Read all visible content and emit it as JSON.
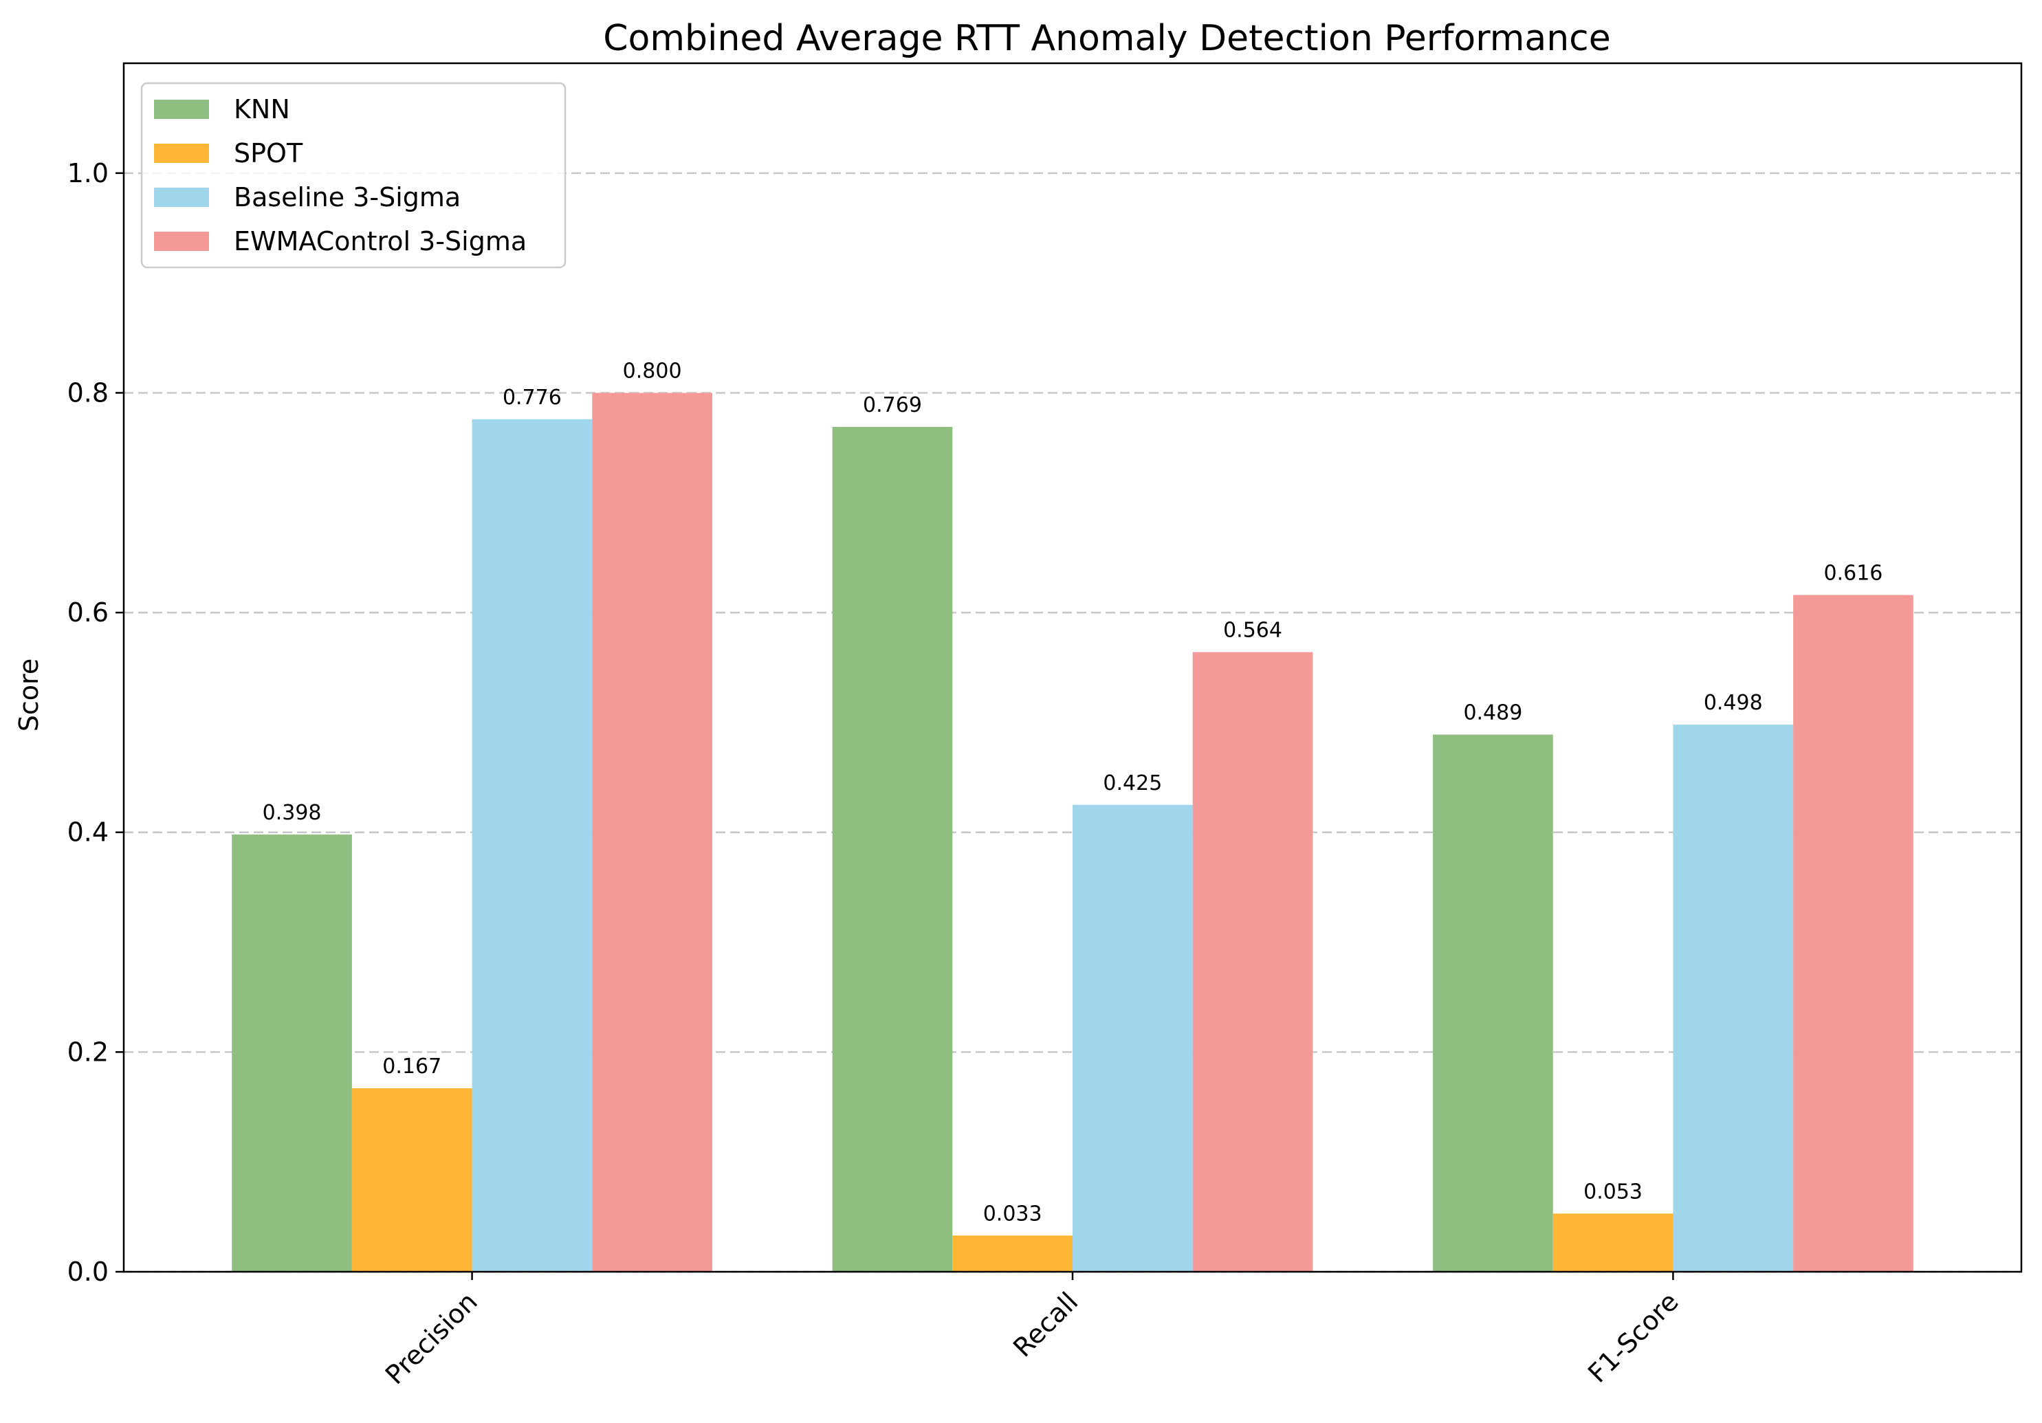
{
  "chart_data": {
    "type": "bar",
    "title": "Combined Average RTT Anomaly Detection Performance",
    "xlabel": "",
    "ylabel": "Score",
    "categories": [
      "Precision",
      "Recall",
      "F1-Score"
    ],
    "series": [
      {
        "name": "KNN",
        "color": "#8fbf80",
        "values": [
          0.398,
          0.769,
          0.489
        ],
        "labels": [
          "0.398",
          "0.769",
          "0.489"
        ]
      },
      {
        "name": "SPOT",
        "color": "#ffb637",
        "values": [
          0.167,
          0.033,
          0.053
        ],
        "labels": [
          "0.167",
          "0.033",
          "0.053"
        ]
      },
      {
        "name": "Baseline 3-Sigma",
        "color": "#9fd6ec",
        "values": [
          0.776,
          0.425,
          0.498
        ],
        "labels": [
          "0.776",
          "0.425",
          "0.498"
        ]
      },
      {
        "name": "EWMAControl 3-Sigma",
        "color": "#f39a99",
        "values": [
          0.8,
          0.564,
          0.616
        ],
        "labels": [
          "0.800",
          "0.564",
          "0.616"
        ]
      }
    ],
    "ylim": [
      0,
      1.1
    ],
    "yticks": [
      0.0,
      0.2,
      0.4,
      0.6,
      0.8,
      1.0
    ],
    "ytick_labels": [
      "0.0",
      "0.2",
      "0.4",
      "0.6",
      "0.8",
      "1.0"
    ],
    "grid": "y-dashed",
    "legend_position": "top-left"
  }
}
